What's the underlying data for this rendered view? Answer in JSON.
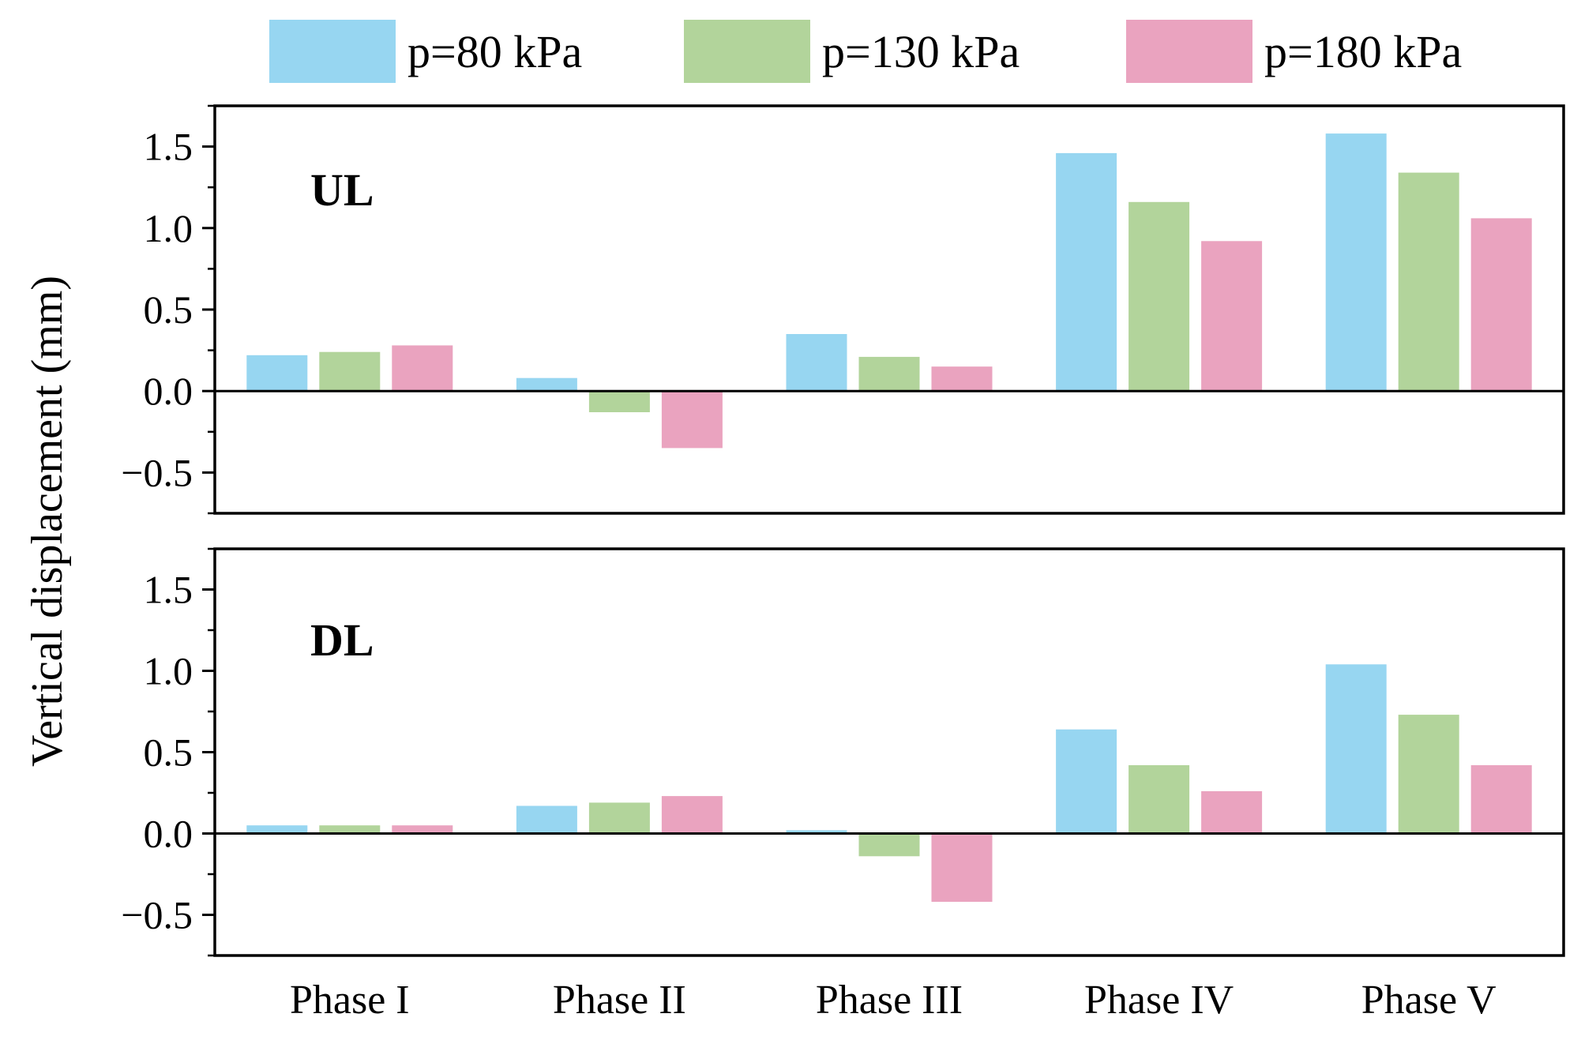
{
  "chart_data": {
    "type": "bar",
    "ylabel": "Vertical displacement (mm)",
    "categories": [
      "Phase I",
      "Phase II",
      "Phase III",
      "Phase IV",
      "Phase V"
    ],
    "ylim": [
      -0.75,
      1.75
    ],
    "yticks": [
      -0.5,
      0.0,
      0.5,
      1.0,
      1.5
    ],
    "ytick_labels": [
      "−0.5",
      "0.0",
      "0.5",
      "1.0",
      "1.5"
    ],
    "grid": false,
    "legend_position": "top",
    "legend": [
      "p=80 kPa",
      "p=130 kPa",
      "p=180 kPa"
    ],
    "colors": [
      "#97d6f1",
      "#b2d49b",
      "#eaa3bf"
    ],
    "panels": [
      {
        "label": "UL",
        "label_color": "#0000ee",
        "series": [
          {
            "name": "p=80 kPa",
            "values": [
              0.22,
              0.08,
              0.35,
              1.46,
              1.58
            ]
          },
          {
            "name": "p=130 kPa",
            "values": [
              0.24,
              -0.13,
              0.21,
              1.16,
              1.34
            ]
          },
          {
            "name": "p=180 kPa",
            "values": [
              0.28,
              -0.35,
              0.15,
              0.92,
              1.06
            ]
          }
        ]
      },
      {
        "label": "DL",
        "label_color": "#0000ee",
        "series": [
          {
            "name": "p=80 kPa",
            "values": [
              0.05,
              0.17,
              0.02,
              0.64,
              1.04
            ]
          },
          {
            "name": "p=130 kPa",
            "values": [
              0.05,
              0.19,
              -0.14,
              0.42,
              0.73
            ]
          },
          {
            "name": "p=180 kPa",
            "values": [
              0.05,
              0.23,
              -0.42,
              0.26,
              0.42
            ]
          }
        ]
      }
    ]
  }
}
